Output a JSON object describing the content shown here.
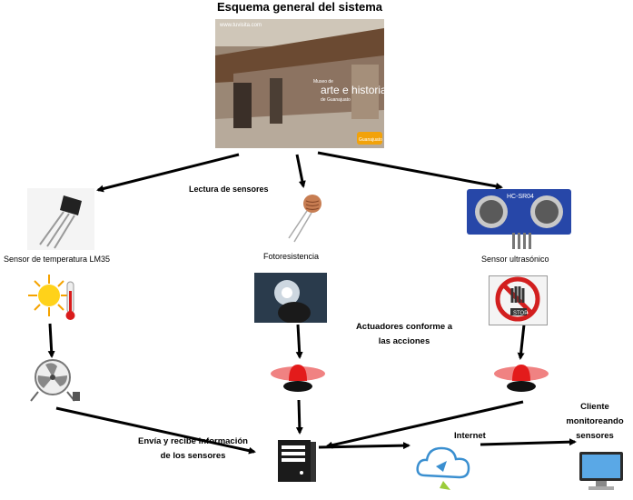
{
  "title": "Esquema general del sistema",
  "building": {
    "watermark": "www.tuvisita.com",
    "sign_line1": "Museo de",
    "sign_line2": "arte e historia",
    "sign_line3": "de Guanajuato",
    "sign_logo": "Guanajuato"
  },
  "labels": {
    "lectura": "Lectura de sensores",
    "temperature": "Sensor de temperatura LM35",
    "photo": "Fotoresistencia",
    "ultrasonic": "Sensor ultrasónico",
    "actuators_line1": "Actuadores conforme a",
    "actuators_line2": "las acciones",
    "envia_line1": "Envía y recibe información",
    "envia_line2": "de los sensores",
    "internet": "Internet",
    "client_line1": "Cliente",
    "client_line2": "monitoreando",
    "client_line3": "sensores"
  },
  "icons": {
    "hc_label": "HC-SR04",
    "stop": "STOP"
  },
  "colors": {
    "arrow": "#000000",
    "siren_red": "#e31b1b",
    "sensor_blue": "#2747a8",
    "stop_red": "#d21f1f",
    "cloud_blue": "#3a8fd0"
  }
}
